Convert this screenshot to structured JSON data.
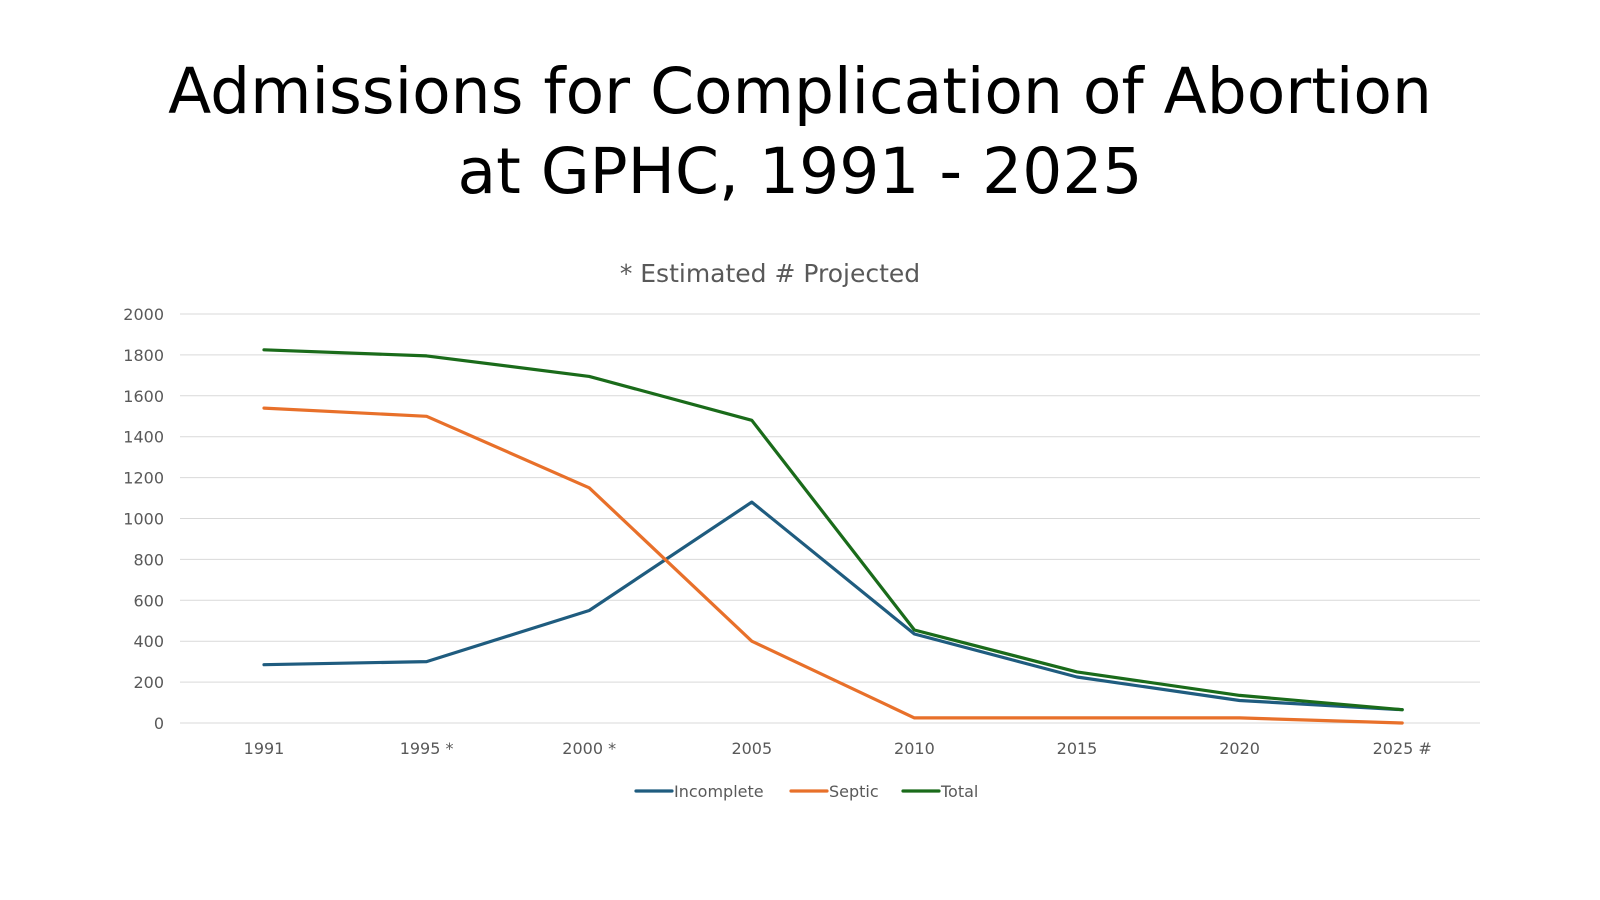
{
  "slide": {
    "title_line1": "Admissions for Complication of Abortion",
    "title_line2": "at GPHC, 1991 - 2025"
  },
  "chart_data": {
    "type": "line",
    "title": "Admissions for Complication of Abortion at GPHC, 1991 - 2025",
    "subtitle": "* Estimated # Projected",
    "categories": [
      "1991",
      "1995 *",
      "2000 *",
      "2005",
      "2010",
      "2015",
      "2020",
      "2025 #"
    ],
    "ylim": [
      0,
      2000
    ],
    "yticks": [
      0,
      200,
      400,
      600,
      800,
      1000,
      1200,
      1400,
      1600,
      1800,
      2000
    ],
    "grid": true,
    "legend_position": "bottom",
    "series": [
      {
        "name": "Incomplete",
        "color": "#1F5C7F",
        "values": [
          285,
          300,
          550,
          1080,
          435,
          225,
          110,
          65
        ]
      },
      {
        "name": "Septic",
        "color": "#E8702A",
        "values": [
          1540,
          1500,
          1150,
          400,
          25,
          25,
          25,
          0
        ]
      },
      {
        "name": "Total",
        "color": "#1A6B1A",
        "values": [
          1825,
          1795,
          1695,
          1480,
          455,
          250,
          135,
          65
        ]
      }
    ]
  }
}
